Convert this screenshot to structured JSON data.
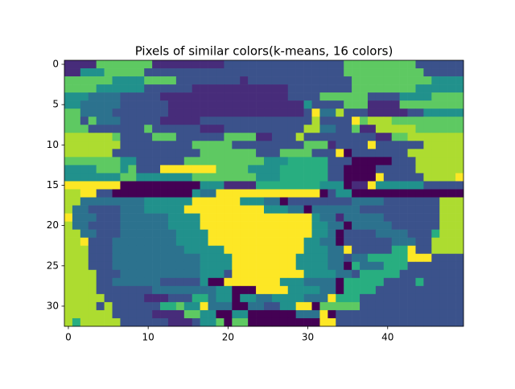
{
  "chart_data": {
    "type": "heatmap",
    "title": "Pixels of similar colors(k-means, 16 colors)",
    "colors": [
      "#440154",
      "#472c7a",
      "#3b528b",
      "#2c728e",
      "#21918c",
      "#28ae80",
      "#5ec962",
      "#addc30",
      "#fde725"
    ],
    "xlim": [
      -0.5,
      49.5
    ],
    "ylim": [
      32.5,
      -0.5
    ],
    "xticks": [
      0,
      10,
      20,
      30,
      40
    ],
    "yticks": [
      0,
      5,
      10,
      15,
      20,
      25,
      30
    ],
    "values": [
      [
        1,
        1,
        1,
        1,
        6,
        6,
        6,
        6,
        6,
        6,
        6,
        1,
        1,
        1,
        1,
        1,
        1,
        1,
        1,
        1,
        2,
        2,
        2,
        2,
        2,
        2,
        2,
        2,
        2,
        2,
        2,
        2,
        2,
        2,
        2,
        6,
        6,
        6,
        6,
        6,
        6,
        6,
        6,
        6,
        2,
        2,
        2,
        2,
        2,
        2
      ],
      [
        1,
        1,
        4,
        4,
        4,
        6,
        6,
        6,
        6,
        6,
        2,
        2,
        2,
        2,
        2,
        2,
        2,
        2,
        2,
        2,
        2,
        2,
        2,
        2,
        2,
        2,
        2,
        2,
        2,
        2,
        2,
        2,
        2,
        2,
        2,
        6,
        6,
        6,
        6,
        6,
        6,
        6,
        6,
        6,
        6,
        2,
        2,
        2,
        2,
        2
      ],
      [
        6,
        6,
        6,
        6,
        6,
        6,
        4,
        4,
        4,
        4,
        6,
        6,
        6,
        6,
        2,
        2,
        2,
        2,
        2,
        2,
        2,
        2,
        1,
        2,
        2,
        2,
        2,
        2,
        2,
        2,
        2,
        2,
        2,
        2,
        2,
        2,
        6,
        6,
        6,
        6,
        6,
        6,
        6,
        6,
        6,
        6,
        4,
        4,
        4,
        4
      ],
      [
        6,
        6,
        6,
        6,
        4,
        4,
        4,
        4,
        4,
        4,
        2,
        2,
        2,
        2,
        2,
        2,
        1,
        1,
        1,
        1,
        1,
        1,
        1,
        1,
        1,
        1,
        1,
        1,
        2,
        2,
        2,
        2,
        2,
        2,
        2,
        2,
        6,
        6,
        6,
        6,
        6,
        6,
        6,
        6,
        4,
        4,
        4,
        4,
        4,
        4
      ],
      [
        4,
        4,
        4,
        3,
        3,
        3,
        3,
        2,
        2,
        2,
        2,
        2,
        1,
        1,
        1,
        1,
        1,
        1,
        1,
        1,
        1,
        1,
        1,
        1,
        1,
        1,
        1,
        1,
        2,
        2,
        2,
        2,
        6,
        6,
        6,
        6,
        6,
        6,
        2,
        2,
        2,
        2,
        4,
        4,
        4,
        4,
        6,
        6,
        6,
        6
      ],
      [
        4,
        4,
        3,
        3,
        3,
        3,
        3,
        2,
        2,
        2,
        2,
        2,
        2,
        1,
        1,
        1,
        1,
        1,
        1,
        1,
        1,
        1,
        1,
        1,
        1,
        1,
        1,
        1,
        1,
        1,
        4,
        2,
        2,
        2,
        2,
        6,
        6,
        6,
        1,
        1,
        1,
        1,
        6,
        6,
        6,
        6,
        6,
        6,
        6,
        6
      ],
      [
        6,
        6,
        3,
        3,
        3,
        3,
        2,
        2,
        2,
        2,
        2,
        2,
        2,
        1,
        1,
        1,
        1,
        1,
        1,
        1,
        1,
        1,
        1,
        1,
        1,
        1,
        1,
        1,
        1,
        1,
        2,
        8,
        3,
        3,
        7,
        2,
        2,
        2,
        1,
        1,
        1,
        1,
        1,
        2,
        2,
        4,
        4,
        4,
        4,
        4
      ],
      [
        6,
        6,
        2,
        6,
        3,
        3,
        3,
        2,
        2,
        2,
        2,
        2,
        1,
        1,
        1,
        1,
        1,
        2,
        2,
        2,
        2,
        2,
        2,
        2,
        2,
        2,
        2,
        2,
        2,
        2,
        2,
        7,
        2,
        2,
        2,
        2,
        8,
        6,
        7,
        7,
        7,
        6,
        6,
        6,
        6,
        6,
        6,
        6,
        6,
        6
      ],
      [
        6,
        6,
        6,
        2,
        2,
        2,
        2,
        2,
        2,
        2,
        6,
        2,
        2,
        2,
        2,
        2,
        2,
        1,
        1,
        1,
        2,
        2,
        2,
        2,
        2,
        2,
        2,
        2,
        2,
        2,
        7,
        7,
        3,
        3,
        2,
        2,
        6,
        1,
        1,
        7,
        7,
        7,
        7,
        7,
        6,
        6,
        6,
        6,
        6,
        6
      ],
      [
        7,
        7,
        7,
        7,
        7,
        7,
        6,
        2,
        2,
        2,
        2,
        6,
        6,
        6,
        2,
        2,
        2,
        2,
        2,
        2,
        6,
        6,
        6,
        6,
        1,
        1,
        2,
        2,
        2,
        7,
        2,
        2,
        2,
        2,
        2,
        2,
        2,
        2,
        2,
        1,
        1,
        6,
        6,
        7,
        7,
        7,
        7,
        7,
        7,
        7
      ],
      [
        7,
        7,
        7,
        7,
        7,
        7,
        7,
        2,
        2,
        2,
        2,
        2,
        2,
        2,
        2,
        2,
        6,
        6,
        6,
        6,
        6,
        2,
        2,
        2,
        2,
        2,
        2,
        2,
        2,
        2,
        6,
        6,
        6,
        1,
        2,
        2,
        2,
        2,
        8,
        2,
        2,
        2,
        2,
        2,
        2,
        7,
        7,
        7,
        7,
        7
      ],
      [
        7,
        7,
        7,
        7,
        7,
        7,
        2,
        2,
        2,
        2,
        2,
        2,
        2,
        2,
        2,
        2,
        2,
        6,
        6,
        6,
        6,
        6,
        6,
        6,
        2,
        2,
        2,
        6,
        6,
        6,
        6,
        2,
        2,
        2,
        8,
        0,
        2,
        2,
        2,
        2,
        2,
        2,
        2,
        7,
        7,
        7,
        7,
        7,
        7,
        7
      ],
      [
        6,
        6,
        6,
        6,
        6,
        6,
        6,
        4,
        4,
        2,
        2,
        2,
        2,
        2,
        2,
        6,
        6,
        6,
        6,
        6,
        6,
        6,
        6,
        6,
        6,
        4,
        4,
        4,
        5,
        5,
        5,
        5,
        5,
        2,
        2,
        2,
        0,
        0,
        0,
        0,
        0,
        2,
        2,
        2,
        7,
        7,
        7,
        7,
        7,
        7
      ],
      [
        4,
        4,
        4,
        4,
        6,
        6,
        6,
        4,
        6,
        2,
        2,
        2,
        8,
        8,
        8,
        8,
        8,
        8,
        8,
        6,
        6,
        6,
        6,
        4,
        4,
        4,
        4,
        5,
        5,
        5,
        5,
        5,
        5,
        2,
        2,
        0,
        0,
        0,
        0,
        2,
        2,
        2,
        2,
        2,
        7,
        7,
        7,
        7,
        7,
        7
      ],
      [
        4,
        4,
        4,
        4,
        4,
        4,
        4,
        6,
        6,
        4,
        4,
        4,
        4,
        4,
        4,
        4,
        6,
        6,
        6,
        6,
        6,
        6,
        6,
        6,
        4,
        4,
        4,
        5,
        5,
        5,
        5,
        5,
        5,
        2,
        2,
        0,
        0,
        0,
        0,
        8,
        2,
        2,
        2,
        2,
        2,
        7,
        7,
        7,
        7,
        8
      ],
      [
        8,
        8,
        8,
        8,
        8,
        8,
        8,
        0,
        0,
        0,
        0,
        0,
        0,
        0,
        0,
        0,
        0,
        4,
        4,
        4,
        1,
        1,
        1,
        1,
        5,
        5,
        5,
        5,
        5,
        5,
        5,
        5,
        4,
        4,
        4,
        0,
        1,
        1,
        8,
        4,
        4,
        4,
        4,
        4,
        4,
        2,
        2,
        2,
        2,
        2
      ],
      [
        7,
        7,
        8,
        8,
        2,
        2,
        0,
        0,
        0,
        0,
        0,
        0,
        0,
        0,
        0,
        0,
        4,
        3,
        3,
        8,
        8,
        8,
        8,
        8,
        8,
        8,
        8,
        8,
        8,
        8,
        8,
        8,
        0,
        2,
        4,
        4,
        0,
        0,
        0,
        0,
        0,
        0,
        0,
        0,
        0,
        0,
        0,
        0,
        0,
        0
      ],
      [
        7,
        7,
        3,
        3,
        3,
        3,
        3,
        3,
        3,
        3,
        4,
        4,
        4,
        4,
        4,
        4,
        8,
        8,
        8,
        8,
        8,
        8,
        4,
        4,
        4,
        3,
        3,
        0,
        2,
        2,
        2,
        2,
        2,
        2,
        2,
        2,
        3,
        3,
        3,
        3,
        2,
        2,
        2,
        2,
        2,
        2,
        2,
        7,
        7,
        7
      ],
      [
        7,
        3,
        3,
        2,
        2,
        2,
        2,
        3,
        3,
        3,
        4,
        4,
        4,
        4,
        4,
        8,
        8,
        8,
        8,
        8,
        8,
        8,
        8,
        8,
        8,
        4,
        4,
        4,
        3,
        3,
        0,
        3,
        3,
        3,
        3,
        3,
        3,
        2,
        2,
        2,
        2,
        2,
        2,
        2,
        2,
        2,
        2,
        7,
        7,
        7
      ],
      [
        8,
        3,
        3,
        3,
        2,
        2,
        2,
        3,
        3,
        3,
        3,
        3,
        3,
        4,
        4,
        4,
        4,
        8,
        8,
        8,
        8,
        8,
        8,
        8,
        8,
        8,
        8,
        8,
        8,
        8,
        8,
        4,
        3,
        3,
        1,
        3,
        3,
        3,
        3,
        3,
        2,
        2,
        2,
        2,
        2,
        2,
        2,
        7,
        7,
        7
      ],
      [
        7,
        3,
        3,
        2,
        2,
        2,
        2,
        3,
        3,
        3,
        3,
        3,
        3,
        4,
        4,
        4,
        4,
        8,
        8,
        8,
        8,
        8,
        8,
        8,
        8,
        8,
        8,
        8,
        8,
        8,
        8,
        4,
        4,
        3,
        3,
        0,
        3,
        3,
        3,
        3,
        3,
        2,
        2,
        2,
        2,
        2,
        2,
        7,
        7,
        7
      ],
      [
        7,
        7,
        3,
        3,
        2,
        2,
        2,
        3,
        3,
        3,
        3,
        3,
        3,
        3,
        4,
        4,
        4,
        4,
        8,
        8,
        8,
        8,
        8,
        8,
        8,
        8,
        8,
        8,
        8,
        8,
        8,
        4,
        4,
        3,
        0,
        2,
        2,
        2,
        2,
        3,
        3,
        3,
        3,
        2,
        2,
        2,
        5,
        7,
        7,
        7
      ],
      [
        7,
        7,
        8,
        2,
        2,
        2,
        3,
        3,
        3,
        3,
        3,
        3,
        3,
        3,
        4,
        4,
        4,
        4,
        8,
        8,
        8,
        8,
        8,
        8,
        8,
        8,
        8,
        8,
        8,
        8,
        4,
        4,
        3,
        3,
        0,
        2,
        2,
        2,
        2,
        2,
        2,
        3,
        3,
        3,
        2,
        2,
        7,
        7,
        7,
        7
      ],
      [
        7,
        7,
        7,
        2,
        2,
        2,
        3,
        3,
        3,
        3,
        3,
        3,
        3,
        3,
        3,
        4,
        4,
        4,
        4,
        4,
        8,
        8,
        8,
        8,
        8,
        8,
        8,
        8,
        8,
        8,
        4,
        4,
        4,
        3,
        3,
        8,
        2,
        2,
        2,
        2,
        2,
        5,
        5,
        8,
        2,
        2,
        7,
        7,
        7,
        7
      ],
      [
        7,
        7,
        7,
        2,
        2,
        2,
        3,
        3,
        3,
        3,
        3,
        3,
        3,
        3,
        3,
        3,
        3,
        4,
        4,
        4,
        4,
        8,
        8,
        8,
        8,
        8,
        8,
        8,
        8,
        4,
        4,
        4,
        4,
        3,
        3,
        2,
        3,
        3,
        5,
        5,
        5,
        5,
        5,
        8,
        8,
        8,
        2,
        2,
        2,
        2
      ],
      [
        7,
        7,
        7,
        2,
        2,
        2,
        3,
        3,
        3,
        3,
        3,
        3,
        3,
        3,
        3,
        3,
        3,
        4,
        4,
        4,
        4,
        8,
        8,
        8,
        8,
        8,
        8,
        8,
        8,
        4,
        4,
        4,
        4,
        3,
        3,
        0,
        5,
        3,
        3,
        3,
        5,
        5,
        5,
        2,
        2,
        2,
        2,
        2,
        2,
        2
      ],
      [
        7,
        7,
        7,
        7,
        2,
        2,
        2,
        3,
        3,
        3,
        3,
        3,
        3,
        3,
        3,
        3,
        3,
        4,
        4,
        4,
        2,
        8,
        8,
        8,
        8,
        8,
        8,
        8,
        8,
        8,
        4,
        4,
        4,
        4,
        3,
        3,
        2,
        5,
        5,
        5,
        5,
        5,
        2,
        2,
        2,
        2,
        2,
        2,
        2,
        2
      ],
      [
        7,
        7,
        7,
        7,
        2,
        2,
        3,
        3,
        3,
        3,
        3,
        3,
        2,
        2,
        2,
        2,
        2,
        4,
        0,
        0,
        8,
        8,
        8,
        8,
        8,
        8,
        8,
        4,
        4,
        4,
        3,
        3,
        3,
        3,
        0,
        5,
        5,
        5,
        5,
        5,
        2,
        2,
        2,
        2,
        5,
        2,
        2,
        2,
        2,
        2
      ],
      [
        7,
        7,
        7,
        7,
        2,
        2,
        2,
        2,
        2,
        2,
        2,
        3,
        3,
        3,
        3,
        3,
        3,
        3,
        3,
        4,
        4,
        0,
        0,
        0,
        8,
        8,
        8,
        8,
        4,
        4,
        4,
        4,
        3,
        3,
        0,
        5,
        5,
        5,
        5,
        2,
        2,
        2,
        2,
        2,
        2,
        2,
        2,
        2,
        2,
        2
      ],
      [
        7,
        7,
        7,
        7,
        7,
        2,
        2,
        2,
        2,
        2,
        1,
        1,
        1,
        2,
        2,
        2,
        5,
        5,
        3,
        4,
        4,
        0,
        4,
        4,
        3,
        3,
        4,
        4,
        4,
        4,
        3,
        3,
        3,
        8,
        5,
        5,
        5,
        2,
        2,
        2,
        2,
        2,
        2,
        2,
        2,
        2,
        2,
        2,
        2,
        2
      ],
      [
        7,
        7,
        7,
        7,
        2,
        7,
        2,
        2,
        2,
        2,
        2,
        2,
        5,
        5,
        6,
        4,
        4,
        8,
        3,
        3,
        3,
        0,
        0,
        3,
        3,
        2,
        2,
        4,
        4,
        8,
        8,
        0,
        6,
        6,
        6,
        6,
        6,
        2,
        2,
        2,
        2,
        2,
        2,
        2,
        2,
        2,
        2,
        2,
        2,
        2
      ],
      [
        7,
        7,
        7,
        7,
        7,
        7,
        2,
        2,
        2,
        2,
        2,
        1,
        1,
        1,
        1,
        6,
        6,
        4,
        4,
        0,
        0,
        4,
        4,
        0,
        0,
        0,
        0,
        0,
        0,
        3,
        3,
        3,
        8,
        0,
        2,
        2,
        2,
        2,
        2,
        2,
        2,
        2,
        2,
        2,
        2,
        2,
        2,
        2,
        2,
        2
      ],
      [
        7,
        5,
        7,
        7,
        7,
        7,
        7,
        2,
        2,
        2,
        2,
        2,
        2,
        1,
        1,
        1,
        2,
        4,
        4,
        6,
        0,
        6,
        6,
        0,
        0,
        0,
        0,
        0,
        0,
        0,
        0,
        0,
        8,
        8,
        2,
        2,
        2,
        2,
        2,
        2,
        2,
        2,
        2,
        2,
        2,
        2,
        2,
        2,
        2,
        2
      ]
    ]
  }
}
